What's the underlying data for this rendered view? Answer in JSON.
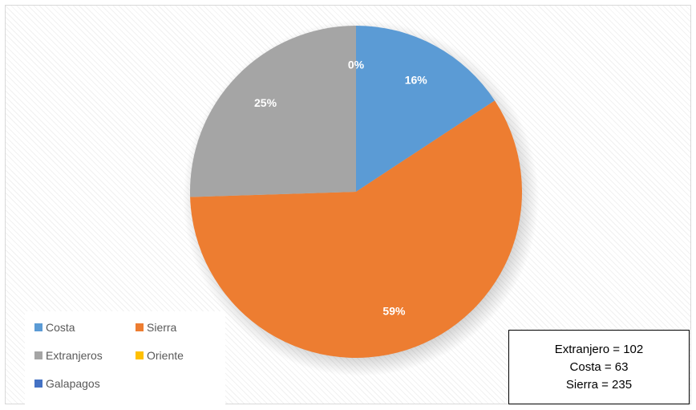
{
  "chart_data": {
    "type": "pie",
    "categories": [
      "Costa",
      "Sierra",
      "Extranjeros",
      "Oriente",
      "Galapagos"
    ],
    "values": [
      63,
      235,
      102,
      0,
      0
    ],
    "percent_labels": [
      "16%",
      "59%",
      "25%",
      "0%",
      ""
    ],
    "colors": [
      "#5b9bd5",
      "#ed7d31",
      "#a5a5a5",
      "#ffc000",
      "#4472c4"
    ],
    "legend_position": "bottom-left",
    "start_angle": "12 o'clock, clockwise"
  },
  "annotation": {
    "lines": [
      "Extranjero = 102",
      "Costa = 63",
      "Sierra = 235"
    ]
  }
}
